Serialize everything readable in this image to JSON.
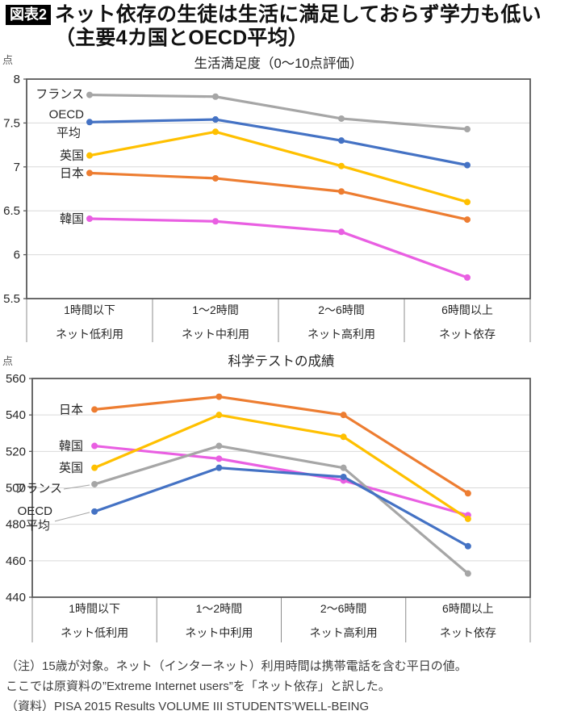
{
  "header": {
    "badge": "図表2",
    "title_line1": "ネット依存の生徒は生活に満足しておらず学力も低い",
    "title_line2": "（主要4カ国とOECD平均）"
  },
  "chart_data": [
    {
      "type": "line",
      "title": "生活満足度（0～10点評価）",
      "unit": "点",
      "categories": [
        {
          "time": "1時間以下",
          "usage": "ネット低利用"
        },
        {
          "time": "1～2時間",
          "usage": "ネット中利用"
        },
        {
          "time": "2～6時間",
          "usage": "ネット高利用"
        },
        {
          "time": "6時間以上",
          "usage": "ネット依存"
        }
      ],
      "ylim": [
        5.5,
        8
      ],
      "yticks": [
        8,
        7.5,
        7,
        6.5,
        6,
        5.5
      ],
      "legend_position": "left-of-first-point",
      "grid": true,
      "series": [
        {
          "name": "フランス",
          "color": "#a6a6a6",
          "values": [
            7.82,
            7.8,
            7.55,
            7.43
          ]
        },
        {
          "name": "OECD平均",
          "label_lines": [
            "OECD",
            "平均"
          ],
          "color": "#4472c4",
          "values": [
            7.51,
            7.54,
            7.3,
            7.02
          ]
        },
        {
          "name": "英国",
          "color": "#ffc000",
          "values": [
            7.13,
            7.4,
            7.01,
            6.6
          ]
        },
        {
          "name": "日本",
          "color": "#ed7d31",
          "values": [
            6.93,
            6.87,
            6.72,
            6.4
          ]
        },
        {
          "name": "韓国",
          "color": "#e95fe2",
          "values": [
            6.41,
            6.38,
            6.26,
            5.74
          ]
        }
      ]
    },
    {
      "type": "line",
      "title": "科学テストの成績",
      "unit": "点",
      "categories": [
        {
          "time": "1時間以下",
          "usage": "ネット低利用"
        },
        {
          "time": "1～2時間",
          "usage": "ネット中利用"
        },
        {
          "time": "2～6時間",
          "usage": "ネット高利用"
        },
        {
          "time": "6時間以上",
          "usage": "ネット依存"
        }
      ],
      "ylim": [
        440,
        560
      ],
      "yticks": [
        560,
        540,
        520,
        500,
        480,
        460,
        440
      ],
      "legend_position": "left-of-first-point",
      "grid": true,
      "series": [
        {
          "name": "日本",
          "color": "#ed7d31",
          "values": [
            543,
            550,
            540,
            497
          ]
        },
        {
          "name": "韓国",
          "color": "#e95fe2",
          "values": [
            523,
            516,
            504,
            485
          ]
        },
        {
          "name": "英国",
          "color": "#ffc000",
          "values": [
            511,
            540,
            528,
            483
          ]
        },
        {
          "name": "フランス",
          "color": "#a6a6a6",
          "values": [
            502,
            523,
            511,
            453
          ]
        },
        {
          "name": "OECD平均",
          "label_lines": [
            "OECD",
            "平均"
          ],
          "color": "#4472c4",
          "values": [
            487,
            511,
            506,
            468
          ]
        }
      ]
    }
  ],
  "notes": {
    "line1": "（注）15歳が対象。ネット（インターネット）利用時間は携帯電話を含む平日の値。",
    "line2": "ここでは原資料の”Extreme Internet users”を「ネット依存」と訳した。",
    "line3": "（資料）PISA 2015 Results VOLUME III STUDENTS’WELL-BEING"
  },
  "colors": {
    "france": "#a6a6a6",
    "oecd_average": "#4472c4",
    "uk": "#ffc000",
    "japan": "#ed7d31",
    "korea": "#e95fe2",
    "axis": "#595959",
    "gridline": "#d9d9d9"
  }
}
